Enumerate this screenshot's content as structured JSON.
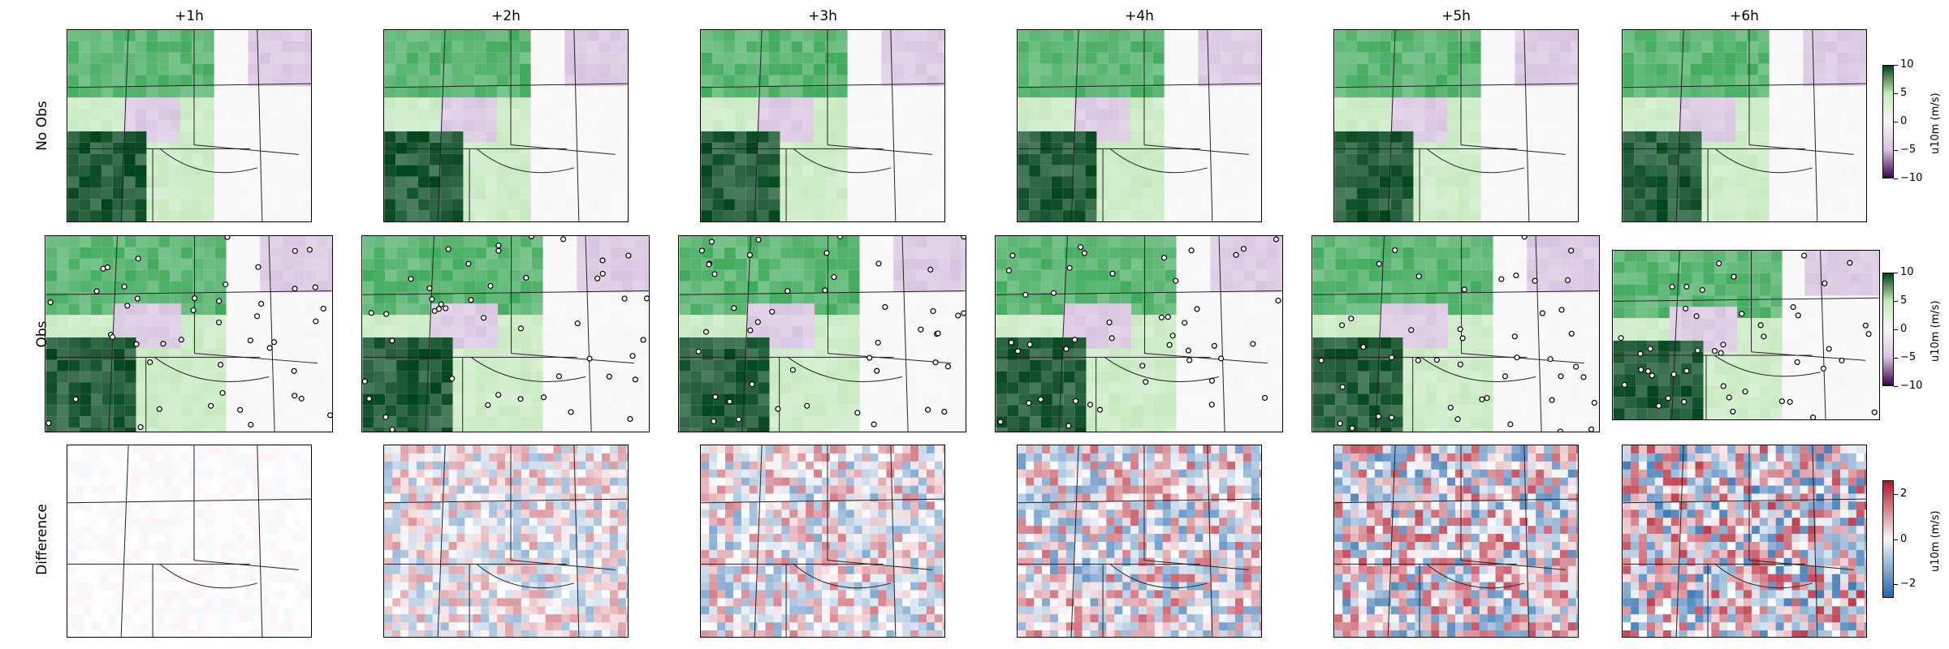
{
  "chart_data": {
    "type": "heatmap",
    "columns": [
      "+1h",
      "+2h",
      "+3h",
      "+4h",
      "+5h",
      "+6h"
    ],
    "rows": [
      "No Obs",
      "Obs",
      "Difference"
    ],
    "colorbars": [
      {
        "label": "u10m (m/s)",
        "ticks": [
          "10",
          "5",
          "0",
          "−5",
          "−10"
        ],
        "range": [
          -10,
          10
        ],
        "colormap": "purple-white-green"
      },
      {
        "label": "u10m (m/s)",
        "ticks": [
          "10",
          "5",
          "0",
          "−5",
          "−10"
        ],
        "range": [
          -10,
          10
        ],
        "colormap": "purple-white-green"
      },
      {
        "label": "u10m (m/s)",
        "ticks": [
          "2",
          "0",
          "−2"
        ],
        "range": [
          -3,
          3
        ],
        "colormap": "blue-white-red"
      }
    ],
    "grid": false
  },
  "colors": {
    "green_dark": "#00441b",
    "green_mid": "#41ab5d",
    "green_light": "#c7e9c0",
    "white": "#f7f7f7",
    "purple_light": "#d8c3e0",
    "purple_dark": "#40004b",
    "red": "#b2182b",
    "blue": "#2166ac"
  }
}
